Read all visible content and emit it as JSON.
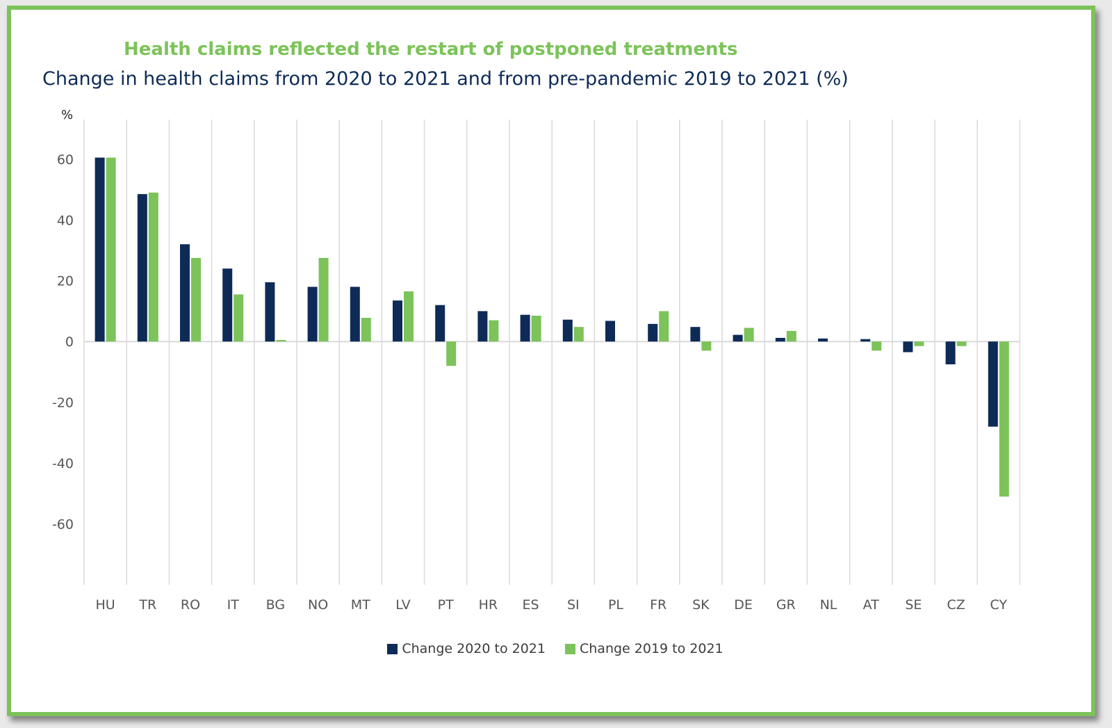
{
  "title": "Health claims reflected the restart of postponed treatments",
  "subtitle": "Change in health claims from 2020 to 2021 and from pre-pandemic 2019 to 2021 (%)",
  "colors": {
    "series1": "#0e2b57",
    "series2": "#7cc35a",
    "frame": "#7cc35a",
    "grid": "#d9d9d9"
  },
  "chart_data": {
    "type": "bar",
    "ylabel": "%",
    "ylim": [
      -80,
      73
    ],
    "yticks": [
      60,
      40,
      20,
      0,
      -20,
      -40,
      -60
    ],
    "categories": [
      "HU",
      "TR",
      "RO",
      "IT",
      "BG",
      "NO",
      "MT",
      "LV",
      "PT",
      "HR",
      "ES",
      "SI",
      "PL",
      "FR",
      "SK",
      "DE",
      "GR",
      "NL",
      "AT",
      "SE",
      "CZ",
      "CY"
    ],
    "series": [
      {
        "name": "Change 2020 to 2021",
        "values": [
          60.5,
          48.5,
          32,
          24,
          19.5,
          18,
          18,
          13.5,
          12,
          10,
          8.8,
          7.2,
          6.8,
          5.8,
          4.8,
          2.2,
          1.2,
          1,
          0.8,
          -3.5,
          -7.5,
          -28
        ]
      },
      {
        "name": "Change 2019 to 2021",
        "values": [
          60.5,
          49,
          27.5,
          15.5,
          0.5,
          27.5,
          7.8,
          16.5,
          -8,
          7,
          8.5,
          4.8,
          0,
          10,
          -3,
          4.5,
          3.5,
          0,
          -3,
          -1.5,
          -1.5,
          -51
        ]
      }
    ],
    "legend": "bottom"
  }
}
